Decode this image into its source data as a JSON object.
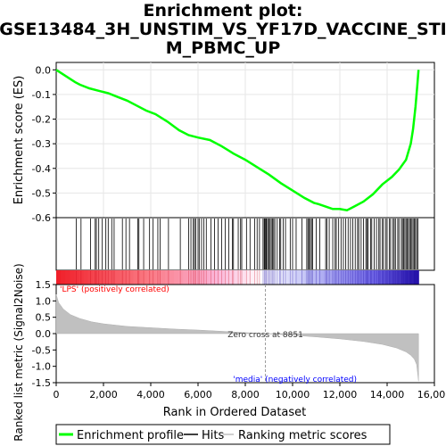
{
  "chart_data": {
    "type": "line",
    "title_lines": [
      "Enrichment plot:",
      "GSE13484_3H_UNSTIM_VS_YF17D_VACCINE_STI",
      "M_PBMC_UP"
    ],
    "es_panel": {
      "ylabel": "Enrichment score (ES)",
      "ylim": [
        -0.6,
        0.03
      ],
      "yticks": [
        "0.0",
        "-0.1",
        "-0.2",
        "-0.3",
        "-0.4",
        "-0.5",
        "-0.6"
      ],
      "ytick_values": [
        0.0,
        -0.1,
        -0.2,
        -0.3,
        -0.4,
        -0.5,
        -0.6
      ],
      "series": [
        {
          "name": "Enrichment profile",
          "color": "#00ff00",
          "x": [
            0,
            400,
            800,
            1000,
            1400,
            1800,
            2200,
            2600,
            3000,
            3400,
            3800,
            4200,
            4700,
            5200,
            5600,
            6000,
            6500,
            7000,
            7500,
            8000,
            8500,
            9000,
            9500,
            10000,
            10500,
            10900,
            11100,
            11400,
            11700,
            12000,
            12300,
            12600,
            13000,
            13400,
            13800,
            14200,
            14500,
            14800,
            15000,
            15100,
            15200,
            15280,
            15330
          ],
          "y": [
            0.0,
            -0.025,
            -0.05,
            -0.06,
            -0.075,
            -0.085,
            -0.095,
            -0.11,
            -0.125,
            -0.145,
            -0.165,
            -0.18,
            -0.21,
            -0.245,
            -0.265,
            -0.275,
            -0.285,
            -0.31,
            -0.34,
            -0.365,
            -0.395,
            -0.425,
            -0.46,
            -0.49,
            -0.52,
            -0.54,
            -0.545,
            -0.555,
            -0.565,
            -0.565,
            -0.57,
            -0.555,
            -0.535,
            -0.505,
            -0.465,
            -0.435,
            -0.405,
            -0.365,
            -0.3,
            -0.24,
            -0.15,
            -0.06,
            0.0
          ]
        }
      ]
    },
    "hits_panel": {
      "hit_ranks": [
        850,
        1050,
        1450,
        1650,
        1700,
        1800,
        1950,
        2100,
        2200,
        2350,
        2450,
        2800,
        2950,
        3100,
        3450,
        3500,
        3700,
        3950,
        4100,
        4300,
        4400,
        4750,
        5250,
        5600,
        5700,
        5800,
        5850,
        5900,
        6000,
        6050,
        6150,
        6250,
        6350,
        6550,
        6700,
        6850,
        7000,
        7150,
        7300,
        7450,
        7500,
        7700,
        7800,
        7850,
        8050,
        8200,
        8400,
        8500,
        8600,
        8750,
        8800,
        8830,
        8870,
        8900,
        8950,
        9000,
        9050,
        9100,
        9150,
        9200,
        9250,
        9350,
        9450,
        9500,
        9600,
        9700,
        9900,
        10000,
        10150,
        10400,
        10600,
        10650,
        10700,
        10750,
        10800,
        10850,
        11000,
        11150,
        11400,
        11450,
        11550,
        11700,
        11800,
        11850,
        11950,
        12050,
        12150,
        12250,
        12350,
        12450,
        12550,
        12650,
        12750,
        12800,
        12900,
        13000,
        13100,
        13150,
        13200,
        13300,
        13350,
        13450,
        13550,
        13650,
        13700,
        13800,
        13850,
        13950,
        14000,
        14100,
        14150,
        14250,
        14300,
        14350,
        14450,
        14500,
        14600,
        14650,
        14700,
        14750,
        14800,
        14850,
        14900,
        14950,
        15000,
        15050,
        15100,
        15150,
        15200,
        15250,
        15300
      ]
    },
    "rank_panel": {
      "ylabel": "Ranked list metric (Signal2Noise)",
      "xlabel": "Rank in Ordered Dataset",
      "ylim": [
        -1.5,
        1.5
      ],
      "yticks": [
        "1.5",
        "1.0",
        "0.5",
        "0.0",
        "-0.5",
        "-1.0",
        "-1.5"
      ],
      "ytick_values": [
        1.5,
        1.0,
        0.5,
        0.0,
        -0.5,
        -1.0,
        -1.5
      ],
      "xlim": [
        0,
        16000
      ],
      "xticks": [
        "0",
        "2,000",
        "4,000",
        "6,000",
        "8,000",
        "10,000",
        "12,000",
        "14,000",
        "16,000"
      ],
      "xtick_values": [
        0,
        2000,
        4000,
        6000,
        8000,
        10000,
        12000,
        14000,
        16000
      ],
      "metric_x": [
        0,
        100,
        300,
        600,
        1000,
        1500,
        2000,
        3000,
        4000,
        5000,
        6000,
        7000,
        8000,
        8851,
        10000,
        11000,
        12000,
        13000,
        13800,
        14400,
        14800,
        15000,
        15150,
        15250,
        15330
      ],
      "metric_y": [
        1.2,
        0.95,
        0.75,
        0.58,
        0.46,
        0.36,
        0.3,
        0.22,
        0.18,
        0.14,
        0.11,
        0.07,
        0.03,
        0.0,
        -0.05,
        -0.1,
        -0.16,
        -0.24,
        -0.33,
        -0.44,
        -0.56,
        -0.66,
        -0.78,
        -0.95,
        -1.45
      ],
      "zero_cross_label": "Zero cross at 8851",
      "zero_cross_rank": 8851,
      "pos_label": "'LPS' (positively correlated)",
      "neg_label": "'media' (negatively correlated)",
      "pos_color": "#ff0000",
      "neg_color": "#0000ff"
    },
    "legend": [
      {
        "label": "Enrichment profile",
        "color": "#00ff00"
      },
      {
        "label": "Hits",
        "color": "#000000"
      },
      {
        "label": "Ranking metric scores",
        "color": "#c0c0c0"
      }
    ],
    "n_genes": 15330
  }
}
